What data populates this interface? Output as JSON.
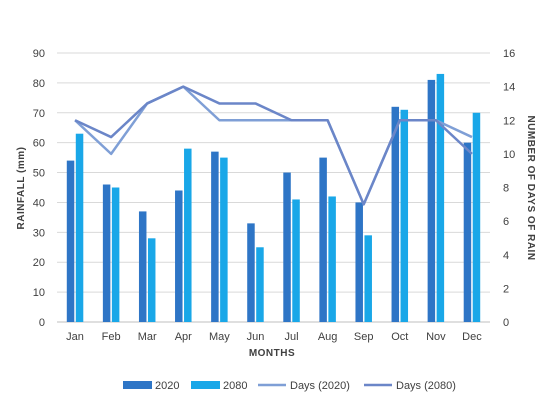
{
  "chart_data": {
    "type": "bar",
    "title": "",
    "xlabel": "MONTHS",
    "ylabel": "RAINFALL (mm)",
    "y2label": "NUMBER OF DAYS OF RAIN",
    "categories": [
      "Jan",
      "Feb",
      "Mar",
      "Apr",
      "May",
      "Jun",
      "Jul",
      "Aug",
      "Sep",
      "Oct",
      "Nov",
      "Dec"
    ],
    "ylim": [
      0,
      90
    ],
    "yticks": [
      0,
      10,
      20,
      30,
      40,
      50,
      60,
      70,
      80,
      90
    ],
    "y2lim": [
      0,
      16
    ],
    "y2ticks": [
      0,
      2,
      4,
      6,
      8,
      10,
      12,
      14,
      16
    ],
    "grid": true,
    "legend_position": "bottom",
    "series": [
      {
        "name": "2020",
        "kind": "bar",
        "axis": "left",
        "color": "#2e75c6",
        "values": [
          54,
          46,
          37,
          44,
          57,
          33,
          50,
          55,
          40,
          72,
          81,
          60
        ]
      },
      {
        "name": "2080",
        "kind": "bar",
        "axis": "left",
        "color": "#19a7e8",
        "values": [
          63,
          45,
          28,
          58,
          55,
          25,
          41,
          42,
          29,
          71,
          83,
          70
        ]
      },
      {
        "name": "Days (2020)",
        "kind": "line",
        "axis": "right",
        "color": "#7f9fd6",
        "values": [
          12,
          10,
          13,
          14,
          12,
          12,
          12,
          12,
          7,
          12,
          12,
          11
        ]
      },
      {
        "name": "Days (2080)",
        "kind": "line",
        "axis": "right",
        "color": "#6b86c8",
        "values": [
          12,
          11,
          13,
          14,
          13,
          13,
          12,
          12,
          7,
          12,
          12,
          10
        ]
      }
    ]
  }
}
